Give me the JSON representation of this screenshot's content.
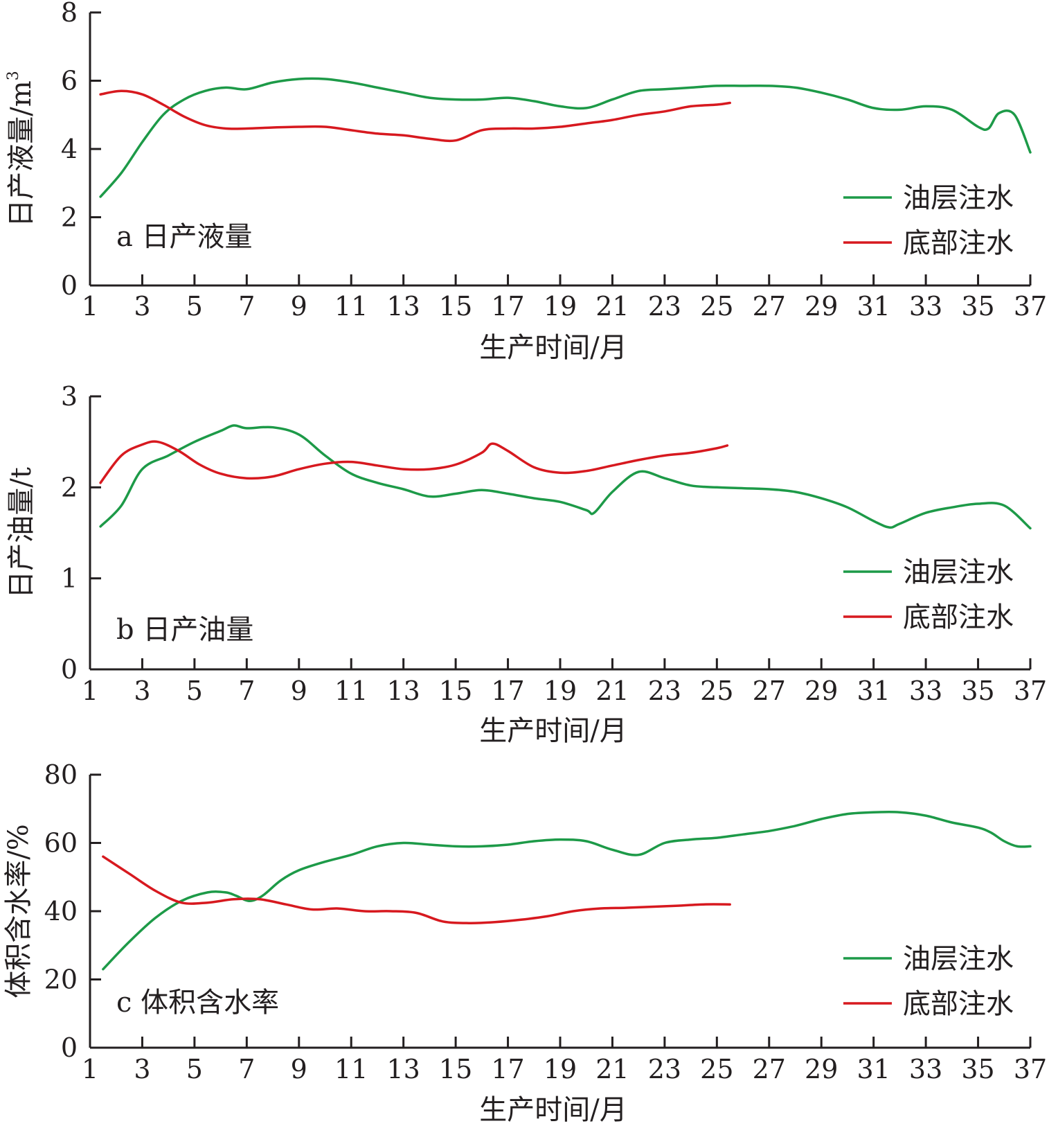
{
  "colors": {
    "axis": "#231f20",
    "series_oil_layer": "#1d9a48",
    "series_bottom": "#d7191f"
  },
  "legend": {
    "oil_layer_injection": "油层注水",
    "bottom_injection": "底部注水"
  },
  "chart_data": [
    {
      "type": "line",
      "panel_label": "a 日产液量",
      "xlabel": "生产时间/月",
      "ylabel": "日产液量/m",
      "ylabel_superscript": "3",
      "xlim": [
        1,
        37
      ],
      "ylim": [
        0,
        8
      ],
      "xticks": [
        1,
        3,
        5,
        7,
        9,
        11,
        13,
        15,
        17,
        19,
        21,
        23,
        25,
        27,
        29,
        31,
        33,
        35,
        37
      ],
      "yticks": [
        0,
        2,
        4,
        6,
        8
      ],
      "legend_position": "bottom-right",
      "series": [
        {
          "name": "油层注水",
          "x": [
            1.4,
            2.2,
            3,
            3.8,
            4.6,
            5.4,
            6.2,
            7,
            8,
            9,
            10,
            11,
            12,
            13,
            14,
            15,
            16,
            17,
            18,
            19,
            20,
            21,
            22,
            23,
            24,
            25,
            26,
            27,
            28,
            29,
            30,
            31,
            32,
            33,
            34,
            35,
            35.4,
            35.8,
            36.4,
            37
          ],
          "y": [
            2.6,
            3.3,
            4.2,
            5.0,
            5.45,
            5.7,
            5.8,
            5.75,
            5.95,
            6.05,
            6.05,
            5.95,
            5.8,
            5.65,
            5.5,
            5.45,
            5.45,
            5.5,
            5.4,
            5.25,
            5.2,
            5.45,
            5.7,
            5.75,
            5.8,
            5.85,
            5.85,
            5.85,
            5.8,
            5.65,
            5.45,
            5.2,
            5.15,
            5.25,
            5.15,
            4.65,
            4.6,
            5.05,
            5.0,
            3.9
          ]
        },
        {
          "name": "底部注水",
          "x": [
            1.4,
            2.2,
            3,
            3.8,
            4.6,
            5.4,
            6.2,
            7,
            8,
            9,
            10,
            11,
            12,
            13,
            14,
            15,
            16,
            17,
            18,
            19,
            20,
            21,
            22,
            23,
            24,
            25,
            25.5
          ],
          "y": [
            5.6,
            5.7,
            5.6,
            5.3,
            4.95,
            4.7,
            4.6,
            4.6,
            4.63,
            4.65,
            4.65,
            4.55,
            4.45,
            4.4,
            4.3,
            4.25,
            4.55,
            4.6,
            4.6,
            4.65,
            4.75,
            4.85,
            5.0,
            5.1,
            5.25,
            5.3,
            5.35
          ]
        }
      ]
    },
    {
      "type": "line",
      "panel_label": "b 日产油量",
      "xlabel": "生产时间/月",
      "ylabel": "日产油量/t",
      "ylabel_superscript": "",
      "xlim": [
        1,
        37
      ],
      "ylim": [
        0,
        3
      ],
      "xticks": [
        1,
        3,
        5,
        7,
        9,
        11,
        13,
        15,
        17,
        19,
        21,
        23,
        25,
        27,
        29,
        31,
        33,
        35,
        37
      ],
      "yticks": [
        0,
        1,
        2,
        3
      ],
      "legend_position": "bottom-right",
      "series": [
        {
          "name": "油层注水",
          "x": [
            1.4,
            2.2,
            3,
            4,
            5,
            6,
            6.5,
            7,
            8,
            9,
            10,
            11,
            12,
            13,
            14,
            15,
            16,
            17,
            18,
            19,
            20,
            20.3,
            21,
            22,
            23,
            24,
            25,
            26,
            27,
            28,
            29,
            30,
            31,
            31.6,
            32,
            33,
            34,
            35,
            36,
            37
          ],
          "y": [
            1.57,
            1.8,
            2.2,
            2.35,
            2.5,
            2.62,
            2.68,
            2.65,
            2.66,
            2.58,
            2.35,
            2.15,
            2.05,
            1.98,
            1.9,
            1.93,
            1.97,
            1.93,
            1.88,
            1.84,
            1.75,
            1.72,
            1.95,
            2.17,
            2.1,
            2.02,
            2.0,
            1.99,
            1.98,
            1.95,
            1.88,
            1.78,
            1.63,
            1.56,
            1.6,
            1.72,
            1.78,
            1.82,
            1.8,
            1.55
          ]
        },
        {
          "name": "底部注水",
          "x": [
            1.4,
            2.2,
            3,
            3.6,
            4.4,
            5.2,
            6,
            7,
            8,
            9,
            10,
            11,
            12,
            13,
            14,
            15,
            16,
            16.4,
            17,
            18,
            19,
            20,
            21,
            22,
            23,
            24,
            25,
            25.4
          ],
          "y": [
            2.05,
            2.35,
            2.47,
            2.5,
            2.4,
            2.25,
            2.15,
            2.1,
            2.12,
            2.2,
            2.26,
            2.28,
            2.24,
            2.2,
            2.2,
            2.25,
            2.38,
            2.48,
            2.4,
            2.22,
            2.16,
            2.18,
            2.24,
            2.3,
            2.35,
            2.38,
            2.43,
            2.46
          ]
        }
      ]
    },
    {
      "type": "line",
      "panel_label": "c 体积含水率",
      "xlabel": "生产时间/月",
      "ylabel": "体积含水率/%",
      "ylabel_superscript": "",
      "xlim": [
        1,
        37
      ],
      "ylim": [
        0,
        80
      ],
      "xticks": [
        1,
        3,
        5,
        7,
        9,
        11,
        13,
        15,
        17,
        19,
        21,
        23,
        25,
        27,
        29,
        31,
        33,
        35,
        37
      ],
      "yticks": [
        0,
        20,
        40,
        60,
        80
      ],
      "legend_position": "bottom-right",
      "series": [
        {
          "name": "油层注水",
          "x": [
            1.5,
            2.5,
            3.5,
            4.5,
            5.5,
            6.2,
            6.6,
            7.1,
            7.6,
            8.3,
            9,
            10,
            11,
            12,
            13,
            14,
            15,
            16,
            17,
            18,
            19,
            20,
            21,
            22,
            23,
            24,
            25,
            26,
            27,
            28,
            29,
            30,
            31,
            32,
            33,
            34,
            35,
            35.5,
            36,
            36.5,
            37
          ],
          "y": [
            23,
            31,
            38,
            43,
            45.5,
            45.5,
            44.5,
            43,
            44.5,
            49,
            52,
            54.5,
            56.5,
            59,
            60,
            59.5,
            59,
            59,
            59.5,
            60.5,
            61,
            60.5,
            58,
            56.5,
            60,
            61,
            61.5,
            62.5,
            63.5,
            65,
            67,
            68.5,
            69,
            69,
            68,
            66,
            64.5,
            63,
            60.5,
            59,
            59
          ]
        },
        {
          "name": "底部注水",
          "x": [
            1.5,
            2.5,
            3.5,
            4.5,
            5.5,
            6.5,
            7.5,
            8.5,
            9.5,
            10.5,
            11.5,
            12.5,
            13.5,
            14.5,
            15.5,
            16.5,
            17.5,
            18.5,
            19.5,
            20.5,
            21.5,
            22.5,
            23.5,
            24.5,
            25.5
          ],
          "y": [
            56,
            51,
            46,
            42.5,
            42.5,
            43.5,
            43.5,
            42,
            40.5,
            40.8,
            40,
            40,
            39.5,
            37,
            36.5,
            36.8,
            37.5,
            38.5,
            40,
            40.8,
            41,
            41.3,
            41.6,
            42,
            42
          ]
        }
      ]
    }
  ]
}
